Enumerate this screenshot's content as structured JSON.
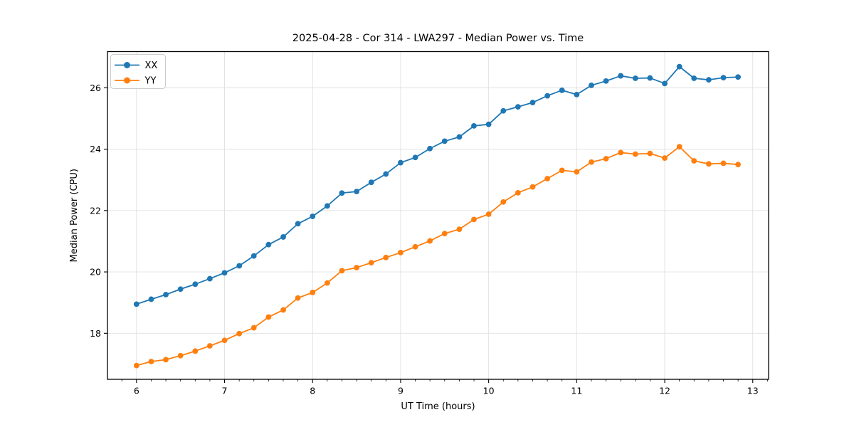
{
  "chart_data": {
    "type": "line",
    "title": "2025-04-28 - Cor 314 - LWA297 - Median Power vs. Time",
    "xlabel": "UT Time (hours)",
    "ylabel": "Median Power (CPU)",
    "x_ticks": [
      6,
      7,
      8,
      9,
      10,
      11,
      12,
      13
    ],
    "y_ticks": [
      18,
      20,
      22,
      24,
      26
    ],
    "xlim": [
      5.67,
      13.18
    ],
    "ylim": [
      16.5,
      27.18
    ],
    "grid": true,
    "minor_tick_step_hours": 0.1667,
    "legend": {
      "position": "upper left"
    },
    "background_color": "#ffffff",
    "grid_color": "#e0e0e0",
    "spine_color": "#000000",
    "x": [
      6.0,
      6.167,
      6.333,
      6.5,
      6.667,
      6.833,
      7.0,
      7.167,
      7.333,
      7.5,
      7.667,
      7.833,
      8.0,
      8.167,
      8.333,
      8.5,
      8.667,
      8.833,
      9.0,
      9.167,
      9.333,
      9.5,
      9.667,
      9.833,
      10.0,
      10.167,
      10.333,
      10.5,
      10.667,
      10.833,
      11.0,
      11.167,
      11.333,
      11.5,
      11.667,
      11.833,
      12.0,
      12.167,
      12.333,
      12.5,
      12.667,
      12.833
    ],
    "series": [
      {
        "name": "XX",
        "color": "#1f77b4",
        "marker": "circle",
        "values": [
          18.95,
          19.11,
          19.26,
          19.44,
          19.6,
          19.78,
          19.97,
          20.2,
          20.52,
          20.89,
          21.14,
          21.57,
          21.81,
          22.15,
          22.57,
          22.62,
          22.92,
          23.19,
          23.56,
          23.73,
          24.02,
          24.26,
          24.4,
          24.76,
          24.81,
          25.25,
          25.38,
          25.52,
          25.74,
          25.92,
          25.78,
          26.08,
          26.22,
          26.39,
          26.31,
          26.32,
          26.14,
          26.69,
          26.31,
          26.26,
          26.33,
          26.35
        ]
      },
      {
        "name": "YY",
        "color": "#ff7f0e",
        "marker": "circle",
        "values": [
          16.95,
          17.08,
          17.14,
          17.27,
          17.42,
          17.59,
          17.77,
          17.99,
          18.18,
          18.53,
          18.76,
          19.15,
          19.33,
          19.64,
          20.04,
          20.14,
          20.3,
          20.47,
          20.63,
          20.82,
          21.01,
          21.25,
          21.39,
          21.71,
          21.88,
          22.28,
          22.58,
          22.77,
          23.04,
          23.31,
          23.26,
          23.58,
          23.69,
          23.89,
          23.84,
          23.86,
          23.71,
          24.08,
          23.62,
          23.52,
          23.54,
          23.5
        ]
      }
    ]
  }
}
